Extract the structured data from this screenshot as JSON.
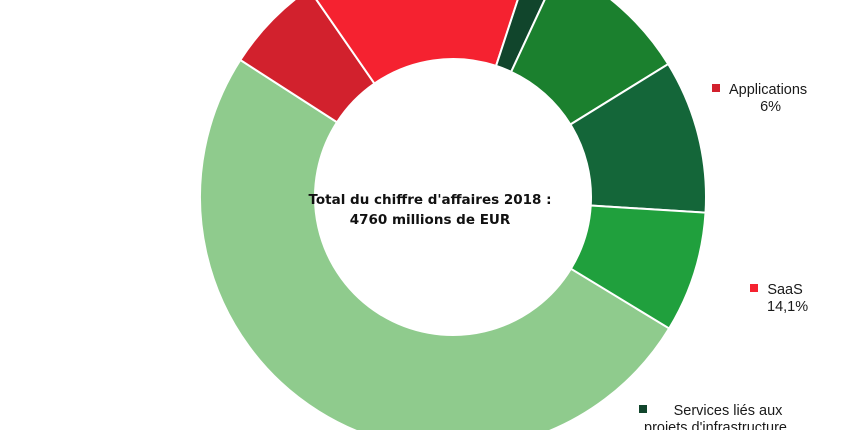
{
  "chart_data": {
    "type": "pie",
    "subtype": "donut",
    "center_label": {
      "line1": "Total du chiffre d'affaires 2018 :",
      "line2": "4760 millions de EUR"
    },
    "slices": [
      {
        "label": "",
        "value_label": "",
        "value": 48.4,
        "color": "#8fcb8d"
      },
      {
        "label": "Applications",
        "value_label": "6%",
        "value": 6.0,
        "color": "#d2212d"
      },
      {
        "label": "SaaS",
        "value_label": "14,1%",
        "value": 14.1,
        "color": "#f52230"
      },
      {
        "label": "Services liés aux projets d'infrastructure",
        "value_label": "",
        "value": 1.8,
        "color": "#11452c"
      },
      {
        "label": "",
        "value_label": "",
        "value": 8.9,
        "color": "#1b802e"
      },
      {
        "label": "",
        "value_label": "",
        "value": 9.4,
        "color": "#146639"
      },
      {
        "label": "",
        "value_label": "",
        "value": 7.4,
        "color": "#20a03d"
      }
    ],
    "start_angle_deg": 121.3
  },
  "labels": {
    "applications": {
      "name": "Applications",
      "value": "6%"
    },
    "saas": {
      "name": "SaaS",
      "value": "14,1%"
    },
    "services": {
      "line1": "Services liés aux",
      "line2": "projets d'infrastructure"
    }
  }
}
